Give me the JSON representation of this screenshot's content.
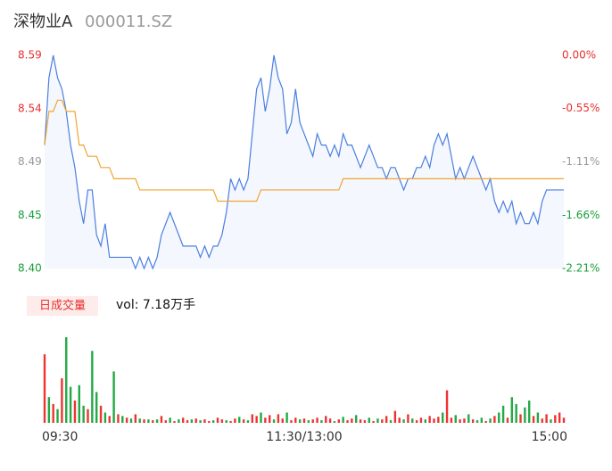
{
  "header": {
    "name": "深物业A",
    "code": "000011.SZ"
  },
  "chart_data": {
    "type": "intraday",
    "xlim": [
      0,
      120
    ],
    "xticks": [
      {
        "value": 0,
        "label": "09:30"
      },
      {
        "value": 60,
        "label": "11:30/13:00"
      },
      {
        "value": 120,
        "label": "15:00"
      }
    ],
    "ylim": [
      8.4,
      8.59
    ],
    "yticks": [
      8.59,
      {
        "value": 8.5425,
        "label": "8.54"
      },
      {
        "value": 8.495,
        "label": "8.49"
      },
      {
        "value": 8.4475,
        "label": "8.45"
      },
      {
        "value": 8.4,
        "label": "8.40"
      }
    ],
    "ytick_colors": [
      "#e8312f",
      "#e8312f",
      "#999999",
      "#1a9e3a",
      "#1a9e3a"
    ],
    "y2lim": [
      -2.21,
      0
    ],
    "y2ticks": [
      {
        "value": 0,
        "label": "0.00%"
      },
      {
        "value": -0.55,
        "label": "-0.55%"
      },
      {
        "value": -1.105,
        "label": "-1.11%"
      },
      {
        "value": -1.66,
        "label": "-1.66%"
      },
      {
        "value": -2.21,
        "label": "-2.21%"
      }
    ],
    "y2tick_colors": [
      "#e8312f",
      "#e8312f",
      "#999999",
      "#1a9e3a",
      "#1a9e3a"
    ],
    "series": [
      {
        "color": "#4a7fe0",
        "fill": "#f4f7fd",
        "values": [
          8.51,
          8.57,
          8.59,
          8.57,
          8.56,
          8.54,
          8.51,
          8.49,
          8.46,
          8.44,
          8.47,
          8.47,
          8.43,
          8.42,
          8.44,
          8.41,
          8.41,
          8.41,
          8.41,
          8.41,
          8.41,
          8.4,
          8.41,
          8.4,
          8.41,
          8.4,
          8.41,
          8.43,
          8.44,
          8.45,
          8.44,
          8.43,
          8.42,
          8.42,
          8.42,
          8.42,
          8.41,
          8.42,
          8.41,
          8.42,
          8.42,
          8.43,
          8.45,
          8.48,
          8.47,
          8.48,
          8.47,
          8.48,
          8.52,
          8.56,
          8.57,
          8.54,
          8.56,
          8.59,
          8.57,
          8.56,
          8.52,
          8.53,
          8.56,
          8.53,
          8.52,
          8.51,
          8.5,
          8.52,
          8.51,
          8.51,
          8.5,
          8.51,
          8.5,
          8.52,
          8.51,
          8.51,
          8.5,
          8.49,
          8.5,
          8.51,
          8.5,
          8.49,
          8.49,
          8.48,
          8.49,
          8.49,
          8.48,
          8.47,
          8.48,
          8.48,
          8.49,
          8.49,
          8.5,
          8.49,
          8.51,
          8.52,
          8.51,
          8.52,
          8.5,
          8.48,
          8.49,
          8.48,
          8.49,
          8.5,
          8.49,
          8.48,
          8.47,
          8.48,
          8.46,
          8.45,
          8.46,
          8.45,
          8.46,
          8.44,
          8.45,
          8.44,
          8.44,
          8.45,
          8.44,
          8.46,
          8.47,
          8.47,
          8.47,
          8.47,
          8.47
        ]
      },
      {
        "color": "#f0a531",
        "values": [
          8.51,
          8.54,
          8.54,
          8.55,
          8.55,
          8.54,
          8.54,
          8.54,
          8.51,
          8.51,
          8.5,
          8.5,
          8.5,
          8.49,
          8.49,
          8.49,
          8.48,
          8.48,
          8.48,
          8.48,
          8.48,
          8.48,
          8.47,
          8.47,
          8.47,
          8.47,
          8.47,
          8.47,
          8.47,
          8.47,
          8.47,
          8.47,
          8.47,
          8.47,
          8.47,
          8.47,
          8.47,
          8.47,
          8.47,
          8.47,
          8.46,
          8.46,
          8.46,
          8.46,
          8.46,
          8.46,
          8.46,
          8.46,
          8.46,
          8.46,
          8.47,
          8.47,
          8.47,
          8.47,
          8.47,
          8.47,
          8.47,
          8.47,
          8.47,
          8.47,
          8.47,
          8.47,
          8.47,
          8.47,
          8.47,
          8.47,
          8.47,
          8.47,
          8.47,
          8.48,
          8.48,
          8.48,
          8.48,
          8.48,
          8.48,
          8.48,
          8.48,
          8.48,
          8.48,
          8.48,
          8.48,
          8.48,
          8.48,
          8.48,
          8.48,
          8.48,
          8.48,
          8.48,
          8.48,
          8.48,
          8.48,
          8.48,
          8.48,
          8.48,
          8.48,
          8.48,
          8.48,
          8.48,
          8.48,
          8.48,
          8.48,
          8.48,
          8.48,
          8.48,
          8.48,
          8.48,
          8.48,
          8.48,
          8.48,
          8.48,
          8.48,
          8.48,
          8.48,
          8.48,
          8.48,
          8.48,
          8.48,
          8.48,
          8.48,
          8.48,
          8.48
        ]
      }
    ],
    "volume": {
      "label": "日成交量",
      "summary": "vol: 7.18万手",
      "ylim": [
        0,
        100
      ],
      "values": [
        80,
        30,
        22,
        16,
        52,
        100,
        42,
        26,
        44,
        20,
        16,
        84,
        36,
        20,
        12,
        8,
        60,
        10,
        8,
        6,
        5,
        10,
        5,
        4,
        4,
        3,
        4,
        8,
        3,
        6,
        2,
        4,
        6,
        3,
        4,
        5,
        3,
        4,
        2,
        3,
        6,
        4,
        3,
        2,
        5,
        7,
        4,
        3,
        10,
        8,
        12,
        6,
        9,
        4,
        10,
        5,
        12,
        3,
        6,
        4,
        5,
        3,
        4,
        6,
        3,
        8,
        5,
        2,
        4,
        7,
        3,
        5,
        9,
        4,
        3,
        6,
        2,
        5,
        4,
        8,
        3,
        14,
        6,
        4,
        10,
        5,
        3,
        6,
        4,
        8,
        5,
        7,
        12,
        38,
        6,
        9,
        4,
        5,
        10,
        4,
        3,
        6,
        2,
        5,
        8,
        12,
        20,
        6,
        30,
        22,
        10,
        18,
        26,
        8,
        12,
        5,
        10,
        4,
        9,
        12,
        6
      ],
      "colors": [
        "#e33",
        "#2a4",
        "#e33",
        "#2a4",
        "#e33",
        "#2a4",
        "#2a4",
        "#e33",
        "#2a4",
        "#2a4",
        "#e33",
        "#2a4",
        "#2a4",
        "#e33",
        "#2a4",
        "#e33",
        "#2a4",
        "#e33",
        "#2a4",
        "#e33",
        "#2a4",
        "#e33",
        "#2a4",
        "#e33",
        "#2a4",
        "#e33",
        "#2a4",
        "#e33",
        "#e33",
        "#2a4",
        "#e33",
        "#2a4",
        "#e33",
        "#e33",
        "#2a4",
        "#e33",
        "#2a4",
        "#e33",
        "#e33",
        "#2a4",
        "#e33",
        "#e33",
        "#2a4",
        "#e33",
        "#e33",
        "#2a4",
        "#e33",
        "#2a4",
        "#e33",
        "#e33",
        "#2a4",
        "#e33",
        "#e33",
        "#2a4",
        "#e33",
        "#e33",
        "#2a4",
        "#e33",
        "#e33",
        "#2a4",
        "#e33",
        "#2a4",
        "#e33",
        "#e33",
        "#2a4",
        "#e33",
        "#e33",
        "#2a4",
        "#e33",
        "#2a4",
        "#e33",
        "#e33",
        "#2a4",
        "#e33",
        "#e33",
        "#2a4",
        "#e33",
        "#2a4",
        "#e33",
        "#e33",
        "#2a4",
        "#e33",
        "#e33",
        "#2a4",
        "#e33",
        "#2a4",
        "#e33",
        "#e33",
        "#2a4",
        "#e33",
        "#e33",
        "#e33",
        "#2a4",
        "#e33",
        "#e33",
        "#2a4",
        "#e33",
        "#e33",
        "#2a4",
        "#e33",
        "#2a4",
        "#2a4",
        "#e33",
        "#2a4",
        "#e33",
        "#2a4",
        "#2a4",
        "#e33",
        "#2a4",
        "#2a4",
        "#e33",
        "#2a4",
        "#2a4",
        "#e33",
        "#2a4",
        "#e33",
        "#e33",
        "#2a4",
        "#e33",
        "#e33",
        "#e33"
      ]
    }
  }
}
